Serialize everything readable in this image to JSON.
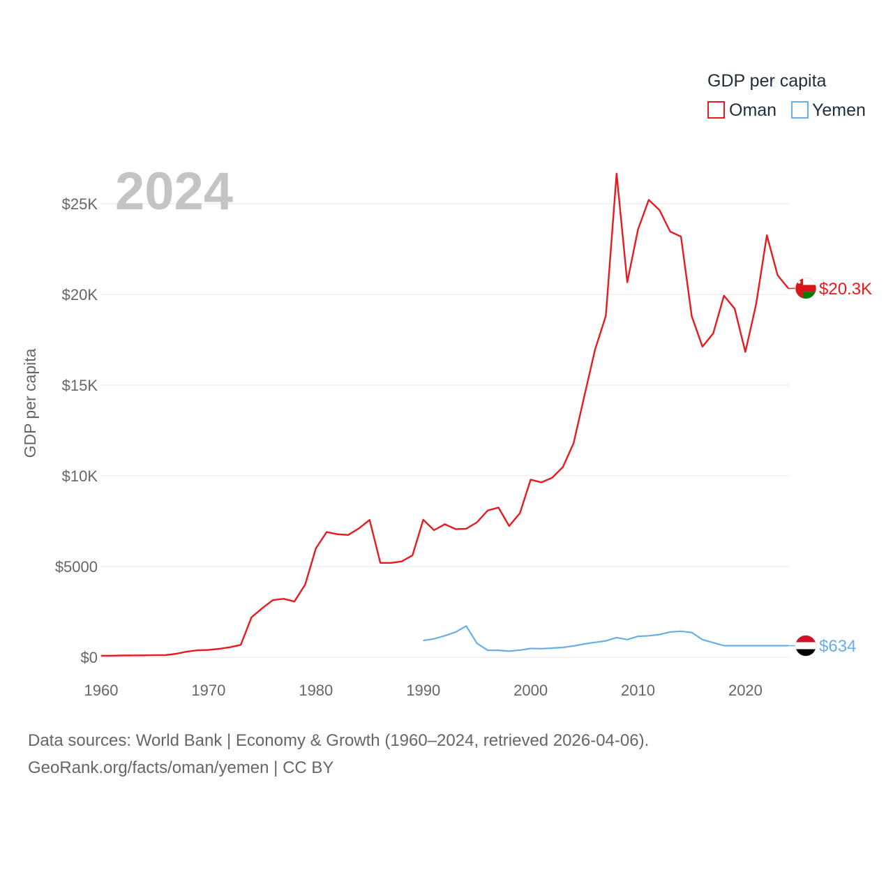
{
  "chart_data": {
    "type": "line",
    "title": "",
    "xlabel": "",
    "ylabel": "GDP per capita",
    "year_label": "2024",
    "xlim": [
      1960,
      2024
    ],
    "ylim": [
      0,
      27000
    ],
    "x_ticks": [
      1960,
      1970,
      1980,
      1990,
      2000,
      2010,
      2020
    ],
    "x_tick_labels": [
      "1960",
      "1970",
      "1980",
      "1990",
      "2000",
      "2010",
      "2020"
    ],
    "y_ticks": [
      0,
      5000,
      10000,
      15000,
      20000,
      25000
    ],
    "y_tick_labels": [
      "$0",
      "$5000",
      "$10K",
      "$15K",
      "$20K",
      "$25K"
    ],
    "grid": true,
    "legend": {
      "title": "GDP per capita",
      "position": "top-right",
      "entries": [
        "Oman",
        "Yemen"
      ]
    },
    "series": [
      {
        "name": "Oman",
        "color": "#e8191f",
        "end_label": "$20.3K",
        "flag": "oman",
        "x": [
          1960,
          1961,
          1962,
          1963,
          1964,
          1965,
          1966,
          1967,
          1968,
          1969,
          1970,
          1971,
          1972,
          1973,
          1974,
          1975,
          1976,
          1977,
          1978,
          1979,
          1980,
          1981,
          1982,
          1983,
          1984,
          1985,
          1986,
          1987,
          1988,
          1989,
          1990,
          1991,
          1992,
          1993,
          1994,
          1995,
          1996,
          1997,
          1998,
          1999,
          2000,
          2001,
          2002,
          2003,
          2004,
          2005,
          2006,
          2007,
          2008,
          2009,
          2010,
          2011,
          2012,
          2013,
          2014,
          2015,
          2016,
          2017,
          2018,
          2019,
          2020,
          2021,
          2022,
          2023,
          2024
        ],
        "values": [
          80,
          85,
          95,
          100,
          105,
          110,
          115,
          190,
          310,
          380,
          400,
          460,
          550,
          680,
          2200,
          2700,
          3150,
          3220,
          3070,
          4000,
          6000,
          6900,
          6780,
          6740,
          7100,
          7570,
          5200,
          5200,
          5280,
          5620,
          7580,
          7000,
          7330,
          7060,
          7080,
          7440,
          8090,
          8250,
          7230,
          7940,
          9790,
          9640,
          9890,
          10480,
          11800,
          14400,
          16970,
          18820,
          26660,
          20670,
          23580,
          25210,
          24650,
          23460,
          23190,
          18800,
          17120,
          17850,
          19930,
          19220,
          16830,
          19460,
          23260,
          21060,
          20330
        ]
      },
      {
        "name": "Yemen",
        "color": "#6aaee6",
        "end_label": "$634",
        "flag": "yemen",
        "x": [
          1990,
          1991,
          1992,
          1993,
          1994,
          1995,
          1996,
          1997,
          1998,
          1999,
          2000,
          2001,
          2002,
          2003,
          2004,
          2005,
          2006,
          2007,
          2008,
          2009,
          2010,
          2011,
          2012,
          2013,
          2014,
          2015,
          2016,
          2017,
          2018,
          2019,
          2020,
          2021,
          2022,
          2023,
          2024
        ],
        "values": [
          920,
          1010,
          1180,
          1380,
          1720,
          760,
          380,
          380,
          330,
          390,
          480,
          470,
          500,
          540,
          620,
          730,
          820,
          900,
          1080,
          970,
          1150,
          1180,
          1250,
          1390,
          1430,
          1360,
          970,
          800,
          634,
          634,
          634,
          634,
          634,
          634,
          634
        ]
      }
    ]
  },
  "footer": {
    "source_line": "Data sources: World Bank | Economy & Growth (1960–2024, retrieved 2026-04-06).",
    "url_line": "GeoRank.org/facts/oman/yemen | CC BY"
  }
}
